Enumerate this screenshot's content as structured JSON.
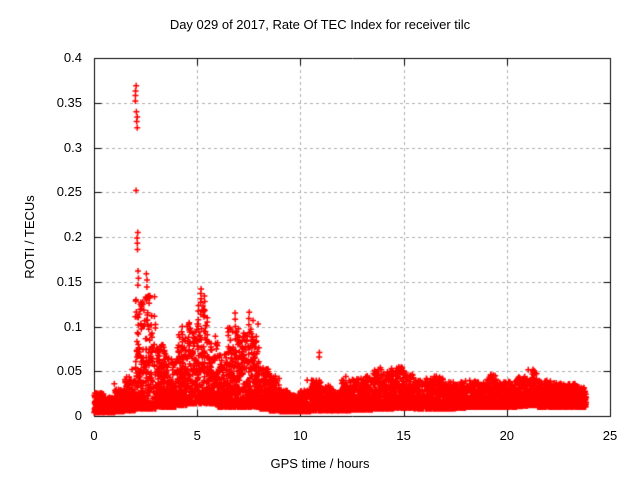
{
  "chart_data": {
    "type": "scatter",
    "title": "Day 029 of 2017, Rate Of TEC Index for receiver tilc",
    "xlabel": "GPS time / hours",
    "ylabel": "ROTI / TECUs",
    "xlim": [
      0,
      25
    ],
    "ylim": [
      0,
      0.4
    ],
    "xticks": [
      0,
      5,
      10,
      15,
      20,
      25
    ],
    "yticks": [
      0,
      0.05,
      0.1,
      0.15,
      0.2,
      0.25,
      0.3,
      0.35,
      0.4
    ],
    "xtick_labels": [
      "0",
      "5",
      "10",
      "15",
      "20",
      "25"
    ],
    "ytick_labels": [
      "0",
      "0.05",
      "0.1",
      "0.15",
      "0.2",
      "0.25",
      "0.3",
      "0.35",
      "0.4"
    ],
    "grid": "dashed",
    "legend": "none",
    "marker": {
      "shape": "plus",
      "color": "#ff0000",
      "size": 7,
      "stroke": 1.5
    },
    "grid_color": "#b0b0b0",
    "axis_color": "#000000",
    "x_end": 23.85,
    "points_per_bin": 155,
    "band_bin_width": 0.5,
    "band": [
      [
        0.0,
        0.004,
        0.026
      ],
      [
        0.5,
        0.004,
        0.022
      ],
      [
        1.0,
        0.005,
        0.03
      ],
      [
        1.5,
        0.006,
        0.045
      ],
      [
        2.0,
        0.008,
        0.13
      ],
      [
        2.5,
        0.008,
        0.135
      ],
      [
        3.0,
        0.01,
        0.08
      ],
      [
        3.5,
        0.01,
        0.065
      ],
      [
        4.0,
        0.012,
        0.095
      ],
      [
        4.5,
        0.014,
        0.105
      ],
      [
        5.0,
        0.014,
        0.125
      ],
      [
        5.5,
        0.014,
        0.09
      ],
      [
        6.0,
        0.01,
        0.07
      ],
      [
        6.5,
        0.01,
        0.1
      ],
      [
        7.0,
        0.01,
        0.095
      ],
      [
        7.5,
        0.01,
        0.11
      ],
      [
        8.0,
        0.008,
        0.055
      ],
      [
        8.5,
        0.006,
        0.045
      ],
      [
        9.0,
        0.005,
        0.03
      ],
      [
        9.5,
        0.005,
        0.024
      ],
      [
        10.0,
        0.005,
        0.03
      ],
      [
        10.5,
        0.006,
        0.04
      ],
      [
        11.0,
        0.006,
        0.034
      ],
      [
        11.5,
        0.006,
        0.03
      ],
      [
        12.0,
        0.006,
        0.04
      ],
      [
        12.5,
        0.007,
        0.042
      ],
      [
        13.0,
        0.007,
        0.045
      ],
      [
        13.5,
        0.008,
        0.054
      ],
      [
        14.0,
        0.008,
        0.05
      ],
      [
        14.5,
        0.009,
        0.055
      ],
      [
        15.0,
        0.009,
        0.05
      ],
      [
        15.5,
        0.008,
        0.04
      ],
      [
        16.0,
        0.008,
        0.042
      ],
      [
        16.5,
        0.008,
        0.045
      ],
      [
        17.0,
        0.008,
        0.038
      ],
      [
        17.5,
        0.009,
        0.038
      ],
      [
        18.0,
        0.01,
        0.04
      ],
      [
        18.5,
        0.01,
        0.038
      ],
      [
        19.0,
        0.01,
        0.046
      ],
      [
        19.5,
        0.01,
        0.038
      ],
      [
        20.0,
        0.01,
        0.04
      ],
      [
        20.5,
        0.011,
        0.044
      ],
      [
        21.0,
        0.012,
        0.052
      ],
      [
        21.5,
        0.01,
        0.04
      ],
      [
        22.0,
        0.01,
        0.04
      ],
      [
        22.5,
        0.01,
        0.038
      ],
      [
        23.0,
        0.01,
        0.036
      ],
      [
        23.5,
        0.01,
        0.032
      ]
    ],
    "spikes": [
      {
        "x": 1.0,
        "ys": [
          0.036
        ]
      },
      {
        "x": 1.85,
        "ys": [
          0.052
        ]
      },
      {
        "x": 2.02,
        "ys": [
          0.369,
          0.363,
          0.358,
          0.352
        ]
      },
      {
        "x": 2.05,
        "ys": [
          0.252
        ]
      },
      {
        "x": 2.07,
        "ys": [
          0.34,
          0.334,
          0.329,
          0.322
        ]
      },
      {
        "x": 2.1,
        "ys": [
          0.205,
          0.199,
          0.193,
          0.186
        ]
      },
      {
        "x": 2.13,
        "ys": [
          0.162,
          0.154,
          0.146
        ]
      },
      {
        "x": 2.55,
        "ys": [
          0.159,
          0.152,
          0.144
        ]
      },
      {
        "x": 3.1,
        "ys": [
          0.075,
          0.068
        ]
      },
      {
        "x": 4.3,
        "ys": [
          0.1,
          0.091,
          0.083
        ]
      },
      {
        "x": 4.6,
        "ys": [
          0.096,
          0.088
        ]
      },
      {
        "x": 5.18,
        "ys": [
          0.142,
          0.137,
          0.131,
          0.127
        ]
      },
      {
        "x": 5.35,
        "ys": [
          0.134,
          0.128
        ]
      },
      {
        "x": 5.9,
        "ys": [
          0.089,
          0.081
        ]
      },
      {
        "x": 6.5,
        "ys": [
          0.098,
          0.09
        ]
      },
      {
        "x": 6.85,
        "ys": [
          0.115,
          0.108,
          0.1,
          0.093,
          0.086
        ]
      },
      {
        "x": 7.5,
        "ys": [
          0.116,
          0.109,
          0.102
        ]
      },
      {
        "x": 7.62,
        "ys": [
          0.092,
          0.085
        ]
      },
      {
        "x": 8.3,
        "ys": [
          0.052
        ]
      },
      {
        "x": 10.35,
        "ys": [
          0.04
        ]
      },
      {
        "x": 10.93,
        "ys": [
          0.071,
          0.066
        ]
      },
      {
        "x": 12.2,
        "ys": [
          0.044
        ]
      },
      {
        "x": 13.8,
        "ys": [
          0.052,
          0.047
        ]
      },
      {
        "x": 14.4,
        "ys": [
          0.053,
          0.048
        ]
      },
      {
        "x": 15.0,
        "ys": [
          0.05
        ]
      },
      {
        "x": 16.5,
        "ys": [
          0.044
        ]
      },
      {
        "x": 19.2,
        "ys": [
          0.046
        ]
      },
      {
        "x": 21.25,
        "ys": [
          0.052,
          0.047
        ]
      }
    ]
  }
}
